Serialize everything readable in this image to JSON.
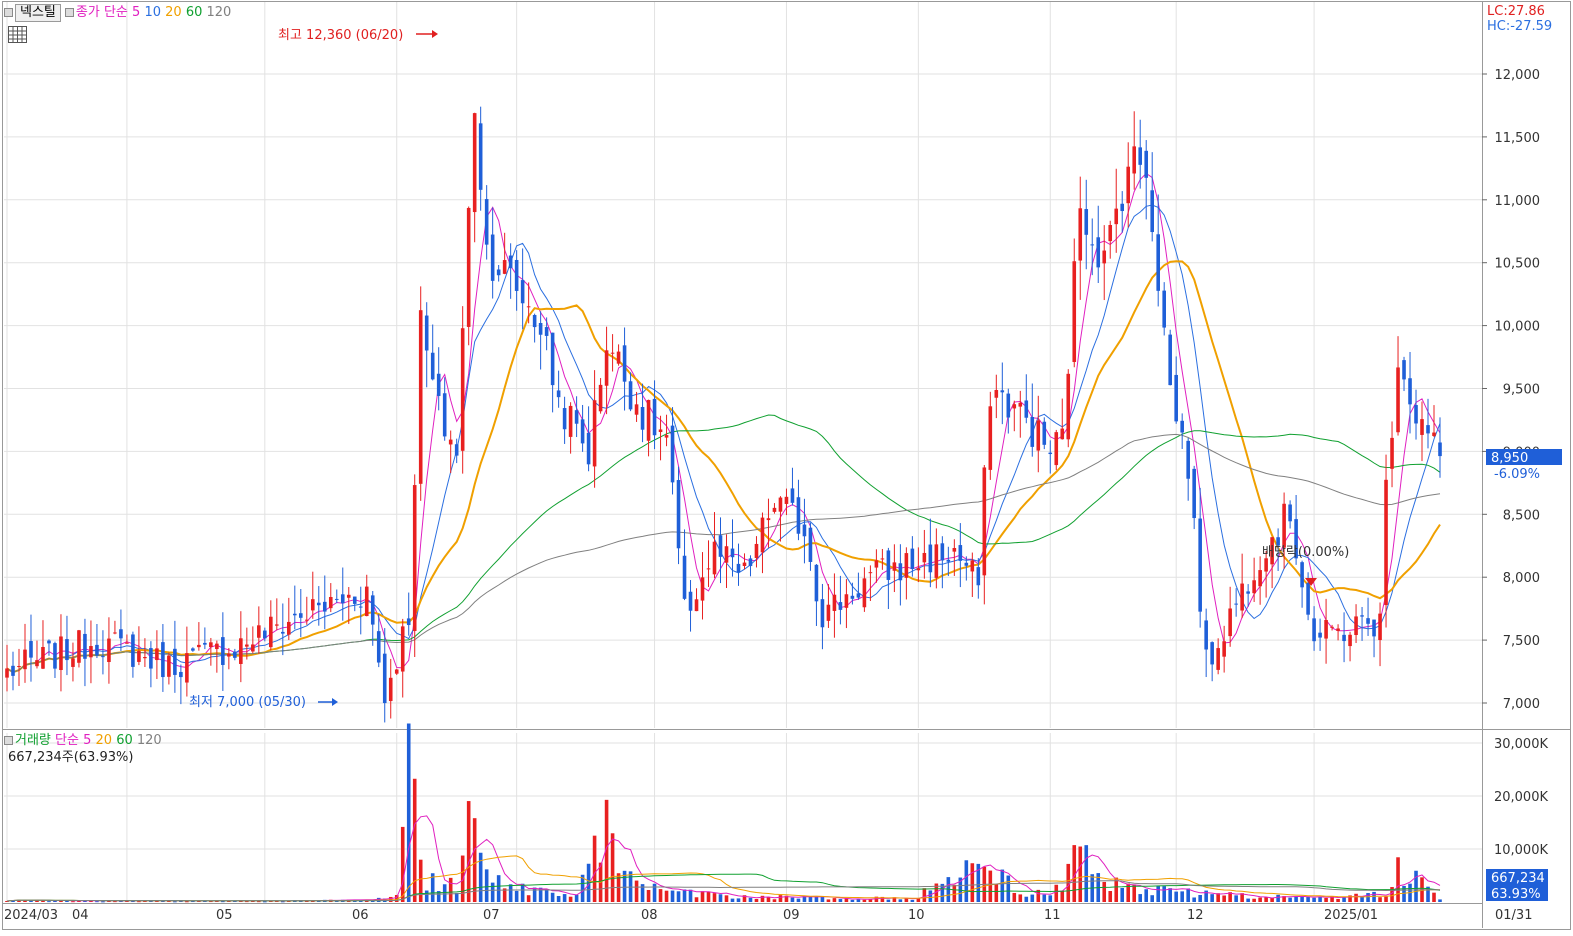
{
  "header": {
    "stock_name": "넥스틸",
    "price_legend_prefix": "종가 단순",
    "ma_periods": [
      "5",
      "10",
      "20",
      "60",
      "120"
    ],
    "lc": "LC:27.86",
    "hc": "HC:-27.59"
  },
  "volume_header": {
    "title": "거래량",
    "method": "단순",
    "ma_periods": [
      "5",
      "20",
      "60",
      "120"
    ],
    "current_text": "667,234주(63.93%)"
  },
  "annotations": {
    "high_label": "최고 12,360 (06/20)",
    "low_label": "최저 7,000 (05/30)",
    "ex_dividend_label": "배당락(0.00%)"
  },
  "markers": {
    "last_price": "8,950",
    "last_change": "-6.09%",
    "last_volume": "667,234",
    "last_volume_pct": "63.93%"
  },
  "colors": {
    "up": "#e82020",
    "down": "#1f5fd8",
    "ma5": "#e020c0",
    "ma10": "#2b6fe0",
    "ma20": "#f0a000",
    "ma60": "#10a030",
    "ma120": "#808080",
    "grid": "#e2e2e2",
    "marker_bg": "#1f5fd8"
  },
  "chart_data": {
    "type": "candlestick",
    "x_axis_labels": [
      "2024/03",
      "04",
      "05",
      "06",
      "07",
      "08",
      "09",
      "10",
      "11",
      "12",
      "2025/01",
      "01/31"
    ],
    "price_axis": {
      "ticks": [
        7000,
        7500,
        8000,
        8500,
        9000,
        9500,
        10000,
        10500,
        11000,
        11500,
        12000
      ]
    },
    "price_tick_labels": [
      "7,000",
      "7,500",
      "8,000",
      "8,500",
      "9,000",
      "9,500",
      "10,000",
      "10,500",
      "11,000",
      "11,500",
      "12,000"
    ],
    "volume_axis": {
      "ticks_k": [
        10000,
        20000,
        30000
      ]
    },
    "volume_tick_labels": [
      "10,000K",
      "20,000K",
      "30,000K"
    ],
    "anchors": [
      [
        "2024-03-04",
        7250
      ],
      [
        "2024-03-25",
        7500
      ],
      [
        "2024-04-10",
        7300
      ],
      [
        "2024-04-25",
        7450
      ],
      [
        "2024-05-10",
        7700
      ],
      [
        "2024-05-20",
        7800
      ],
      [
        "2024-05-27",
        7900
      ],
      [
        "2024-05-30",
        7050
      ],
      [
        "2024-06-05",
        7700
      ],
      [
        "2024-06-07",
        10000
      ],
      [
        "2024-06-12",
        9300
      ],
      [
        "2024-06-17",
        9000
      ],
      [
        "2024-06-20",
        11800
      ],
      [
        "2024-06-24",
        10600
      ],
      [
        "2024-07-01",
        10300
      ],
      [
        "2024-07-05",
        10000
      ],
      [
        "2024-07-10",
        9400
      ],
      [
        "2024-07-17",
        9000
      ],
      [
        "2024-07-22",
        9900
      ],
      [
        "2024-07-30",
        9300
      ],
      [
        "2024-08-05",
        9100
      ],
      [
        "2024-08-08",
        7700
      ],
      [
        "2024-08-15",
        8200
      ],
      [
        "2024-08-22",
        8000
      ],
      [
        "2024-08-29",
        8600
      ],
      [
        "2024-09-05",
        8400
      ],
      [
        "2024-09-10",
        7700
      ],
      [
        "2024-09-20",
        8000
      ],
      [
        "2024-09-30",
        8100
      ],
      [
        "2024-10-10",
        8200
      ],
      [
        "2024-10-16",
        7950
      ],
      [
        "2024-10-18",
        9500
      ],
      [
        "2024-10-25",
        9300
      ],
      [
        "2024-11-01",
        9000
      ],
      [
        "2024-11-05",
        9100
      ],
      [
        "2024-11-08",
        11000
      ],
      [
        "2024-11-14",
        10500
      ],
      [
        "2024-11-20",
        11300
      ],
      [
        "2024-11-25",
        11300
      ],
      [
        "2024-11-29",
        9500
      ],
      [
        "2024-12-04",
        8900
      ],
      [
        "2024-12-09",
        7300
      ],
      [
        "2024-12-12",
        7600
      ],
      [
        "2024-12-20",
        8200
      ],
      [
        "2024-12-27",
        8500
      ],
      [
        "2025-01-02",
        7500
      ],
      [
        "2025-01-10",
        7600
      ],
      [
        "2025-01-17",
        7650
      ],
      [
        "2025-01-20",
        8700
      ],
      [
        "2025-01-22",
        9800
      ],
      [
        "2025-01-27",
        9300
      ],
      [
        "2025-01-31",
        8950
      ]
    ],
    "volume_anchors": [
      [
        "2024-03-04",
        300
      ],
      [
        "2024-04-10",
        200
      ],
      [
        "2024-05-20",
        300
      ],
      [
        "2024-05-31",
        800
      ],
      [
        "2024-06-03",
        2500
      ],
      [
        "2024-06-04",
        18000
      ],
      [
        "2024-06-05",
        29000
      ],
      [
        "2024-06-07",
        9000
      ],
      [
        "2024-06-10",
        4000
      ],
      [
        "2024-06-17",
        3000
      ],
      [
        "2024-06-19",
        18000
      ],
      [
        "2024-06-20",
        17500
      ],
      [
        "2024-06-24",
        5000
      ],
      [
        "2024-07-01",
        2500
      ],
      [
        "2024-07-15",
        1500
      ],
      [
        "2024-07-22",
        15000
      ],
      [
        "2024-07-25",
        5000
      ],
      [
        "2024-08-05",
        2000
      ],
      [
        "2024-08-20",
        1000
      ],
      [
        "2024-10-01",
        700
      ],
      [
        "2024-10-18",
        7500
      ],
      [
        "2024-10-25",
        1500
      ],
      [
        "2024-11-05",
        2500
      ],
      [
        "2024-11-08",
        12500
      ],
      [
        "2024-11-12",
        4000
      ],
      [
        "2024-11-25",
        2500
      ],
      [
        "2024-12-09",
        1500
      ],
      [
        "2024-12-27",
        800
      ],
      [
        "2025-01-20",
        1500
      ],
      [
        "2025-01-22",
        6500
      ],
      [
        "2025-01-31",
        667
      ]
    ]
  }
}
